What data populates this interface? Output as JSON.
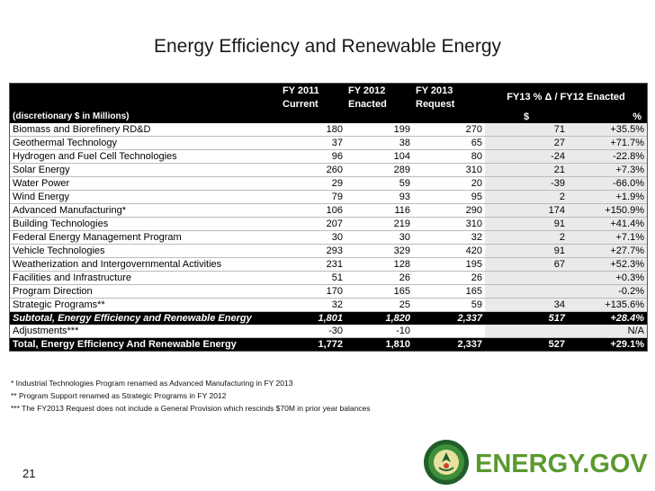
{
  "title": "Energy Efficiency and Renewable Energy",
  "header": {
    "col_fy2011": [
      "FY 2011",
      "Current"
    ],
    "col_fy2012": [
      "FY 2012",
      "Enacted"
    ],
    "col_fy2013": [
      "FY 2013",
      "Request"
    ],
    "delta_title": "FY13 % Δ / FY12 Enacted",
    "units_label": "(discretionary $ in Millions)",
    "delta_dollar": "$",
    "delta_pct": "%"
  },
  "rows": [
    {
      "name": "Biomass and Biorefinery RD&D",
      "fy2011": "180",
      "fy2012": "199",
      "fy2013": "270",
      "delta": "71",
      "pct": "+35.5%"
    },
    {
      "name": "Geothermal Technology",
      "fy2011": "37",
      "fy2012": "38",
      "fy2013": "65",
      "delta": "27",
      "pct": "+71.7%"
    },
    {
      "name": "Hydrogen and Fuel Cell Technologies",
      "fy2011": "96",
      "fy2012": "104",
      "fy2013": "80",
      "delta": "-24",
      "pct": "-22.8%"
    },
    {
      "name": "Solar Energy",
      "fy2011": "260",
      "fy2012": "289",
      "fy2013": "310",
      "delta": "21",
      "pct": "+7.3%"
    },
    {
      "name": "Water Power",
      "fy2011": "29",
      "fy2012": "59",
      "fy2013": "20",
      "delta": "-39",
      "pct": "-66.0%"
    },
    {
      "name": "Wind Energy",
      "fy2011": "79",
      "fy2012": "93",
      "fy2013": "95",
      "delta": "2",
      "pct": "+1.9%"
    },
    {
      "name": "Advanced Manufacturing*",
      "fy2011": "106",
      "fy2012": "116",
      "fy2013": "290",
      "delta": "174",
      "pct": "+150.9%"
    },
    {
      "name": "Building Technologies",
      "fy2011": "207",
      "fy2012": "219",
      "fy2013": "310",
      "delta": "91",
      "pct": "+41.4%"
    },
    {
      "name": "Federal Energy Management Program",
      "fy2011": "30",
      "fy2012": "30",
      "fy2013": "32",
      "delta": "2",
      "pct": "+7.1%"
    },
    {
      "name": "Vehicle Technologies",
      "fy2011": "293",
      "fy2012": "329",
      "fy2013": "420",
      "delta": "91",
      "pct": "+27.7%"
    },
    {
      "name": "Weatherization and Intergovernmental Activities",
      "fy2011": "231",
      "fy2012": "128",
      "fy2013": "195",
      "delta": "67",
      "pct": "+52.3%"
    },
    {
      "name": "Facilities and Infrastructure",
      "fy2011": "51",
      "fy2012": "26",
      "fy2013": "26",
      "delta": "",
      "pct": "+0.3%"
    },
    {
      "name": "Program Direction",
      "fy2011": "170",
      "fy2012": "165",
      "fy2013": "165",
      "delta": "",
      "pct": "-0.2%"
    },
    {
      "name": "Strategic Programs**",
      "fy2011": "32",
      "fy2012": "25",
      "fy2013": "59",
      "delta": "34",
      "pct": "+135.6%"
    }
  ],
  "subtotal": {
    "name": "Subtotal, Energy Efficiency and Renewable Energy",
    "fy2011": "1,801",
    "fy2012": "1,820",
    "fy2013": "2,337",
    "delta": "517",
    "pct": "+28.4%"
  },
  "adjustments": {
    "name": "Adjustments***",
    "fy2011": "-30",
    "fy2012": "-10",
    "fy2013": "",
    "delta": "",
    "pct": "N/A"
  },
  "total": {
    "name": "Total, Energy Efficiency And Renewable Energy",
    "fy2011": "1,772",
    "fy2012": "1,810",
    "fy2013": "2,337",
    "delta": "527",
    "pct": "+29.1%"
  },
  "footnotes": [
    "* Industrial Technologies Program renamed as Advanced Manufacturing in FY 2013",
    "** Program Support renamed as Strategic Programs in FY 2012",
    "*** The FY2013 Request does not include a General Provision which rescinds $70M in prior year balances"
  ],
  "page_number": "21",
  "brand": "ENERGY.GOV",
  "colors": {
    "brand_green": "#5a9a2e",
    "header_bg": "#000000",
    "delta_bg": "#eaeaea"
  }
}
